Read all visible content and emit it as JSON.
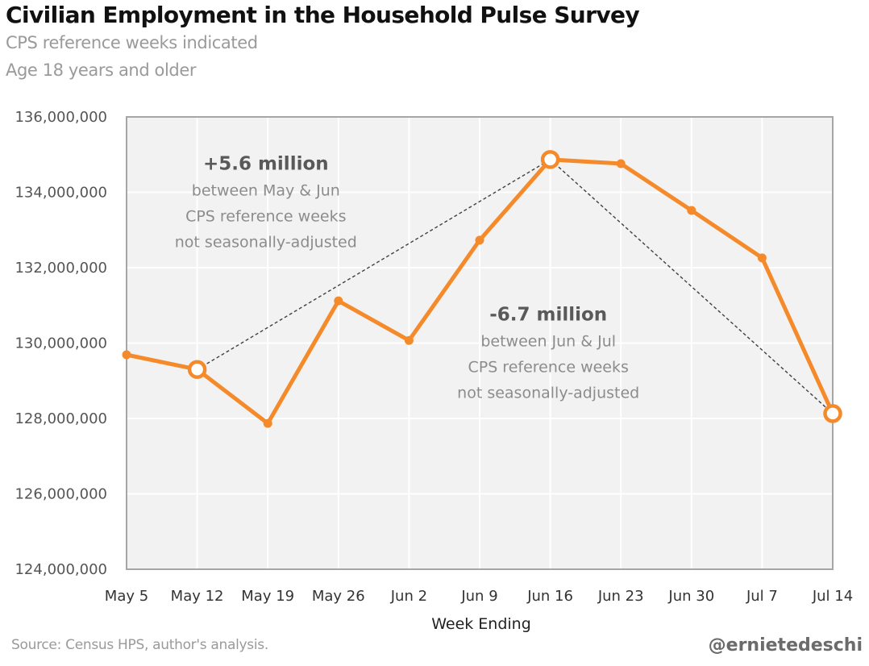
{
  "chart_data": {
    "type": "line",
    "title": "Civilian Employment in the Household Pulse Survey",
    "subtitles": [
      "CPS reference weeks indicated",
      "Age 18 years and older"
    ],
    "xlabel": "Week Ending",
    "ylabel": "",
    "categories": [
      "May 5",
      "May 12",
      "May 19",
      "May 26",
      "Jun 2",
      "Jun 9",
      "Jun 16",
      "Jun 23",
      "Jun 30",
      "Jul 7",
      "Jul 14"
    ],
    "series": [
      {
        "name": "Civilian Employment",
        "color": "#F58A2A",
        "values": [
          129690000,
          129300000,
          127870000,
          131120000,
          130070000,
          132730000,
          134870000,
          134760000,
          133520000,
          132260000,
          128130000
        ]
      }
    ],
    "highlighted_points": [
      "May 12",
      "Jun 16",
      "Jul 14"
    ],
    "ylim": [
      124000000,
      136000000
    ],
    "yticks": [
      124000000,
      126000000,
      128000000,
      130000000,
      132000000,
      134000000,
      136000000
    ],
    "ytick_labels": [
      "124,000,000",
      "126,000,000",
      "128,000,000",
      "130,000,000",
      "132,000,000",
      "134,000,000",
      "136,000,000"
    ],
    "grid": true,
    "legend": "none",
    "annotations": [
      {
        "from": "May 12",
        "to": "Jun 16",
        "headline": "+5.6 million",
        "lines": [
          "between May & Jun",
          "CPS reference weeks",
          "not seasonally-adjusted"
        ],
        "anchor_category": "May 26",
        "anchor_value": 134600000
      },
      {
        "from": "Jun 16",
        "to": "Jul 14",
        "headline": "-6.7 million",
        "lines": [
          "between Jun & Jul",
          "CPS reference weeks",
          "not seasonally-adjusted"
        ],
        "anchor_category": "Jun 23",
        "anchor_value": 130600000
      }
    ],
    "colors": {
      "line": "#F58A2A",
      "plot_background": "#F2F2F2",
      "gridline": "#FFFFFF",
      "axis": "#A6A6A6",
      "connector": "#404040"
    }
  },
  "footer": {
    "source": "Source: Census HPS, author's analysis.",
    "handle": "@ernietedeschi"
  }
}
